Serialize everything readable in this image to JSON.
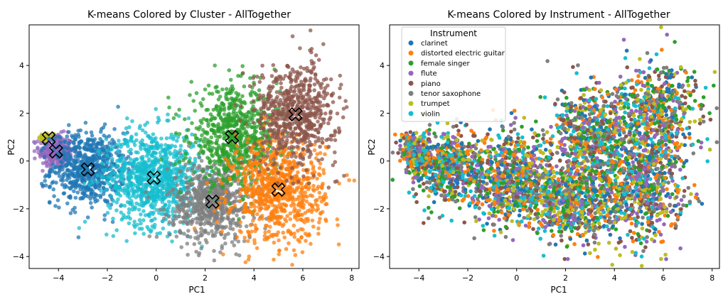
{
  "chart_data": [
    {
      "type": "scatter",
      "title": "K-means Colored by Cluster - AllTogether",
      "xlabel": "PC1",
      "ylabel": "PC2",
      "xlim": [
        -5.2,
        8.3
      ],
      "ylim": [
        -4.5,
        5.7
      ],
      "xticks": [
        -4,
        -2,
        0,
        2,
        4,
        6,
        8
      ],
      "yticks": [
        -4,
        -2,
        0,
        2,
        4
      ],
      "grid": false,
      "legend": null,
      "clusters": [
        {
          "color": "#bcbd22",
          "center": [
            -4.45,
            0.95
          ],
          "spread": [
            0.18,
            0.12
          ]
        },
        {
          "color": "#9467bd",
          "center": [
            -4.1,
            0.4
          ],
          "spread": [
            0.35,
            0.35
          ]
        },
        {
          "color": "#1f77b4",
          "center": [
            -2.8,
            -0.3
          ],
          "spread": [
            0.75,
            0.75
          ]
        },
        {
          "color": "#17becf",
          "center": [
            -0.1,
            -0.7
          ],
          "spread": [
            0.95,
            1.0
          ]
        },
        {
          "color": "#7f7f7f",
          "center": [
            2.3,
            -1.7
          ],
          "spread": [
            0.85,
            0.85
          ]
        },
        {
          "color": "#2ca02c",
          "center": [
            3.2,
            1.0
          ],
          "spread": [
            0.9,
            1.0
          ]
        },
        {
          "color": "#ff7f0e",
          "center": [
            5.0,
            -1.2
          ],
          "spread": [
            0.95,
            1.1
          ]
        },
        {
          "color": "#8c564b",
          "center": [
            5.7,
            2.0
          ],
          "spread": [
            0.85,
            1.05
          ]
        }
      ],
      "centroids": [
        [
          -4.4,
          0.95
        ],
        [
          -4.1,
          0.4
        ],
        [
          -2.8,
          -0.35
        ],
        [
          -0.1,
          -0.7
        ],
        [
          2.3,
          -1.7
        ],
        [
          3.1,
          1.0
        ],
        [
          5.0,
          -1.2
        ],
        [
          5.7,
          1.95
        ]
      ]
    },
    {
      "type": "scatter",
      "title": "K-means Colored by Instrument - AllTogether",
      "xlabel": "PC1",
      "ylabel": "PC2",
      "xlim": [
        -5.2,
        8.3
      ],
      "ylim": [
        -4.5,
        5.7
      ],
      "xticks": [
        -4,
        -2,
        0,
        2,
        4,
        6,
        8
      ],
      "yticks": [
        -4,
        -2,
        0,
        2,
        4
      ],
      "grid": false,
      "legend": {
        "title": "Instrument",
        "placement": "top-left",
        "entries": [
          {
            "name": "clarinet",
            "color": "#1f77b4"
          },
          {
            "name": "distorted electric guitar",
            "color": "#ff7f0e"
          },
          {
            "name": "female singer",
            "color": "#2ca02c"
          },
          {
            "name": "flute",
            "color": "#9467bd"
          },
          {
            "name": "piano",
            "color": "#8c564b"
          },
          {
            "name": "tenor saxophone",
            "color": "#7f7f7f"
          },
          {
            "name": "trumpet",
            "color": "#bcbd22"
          },
          {
            "name": "violin",
            "color": "#17becf"
          }
        ]
      }
    }
  ]
}
